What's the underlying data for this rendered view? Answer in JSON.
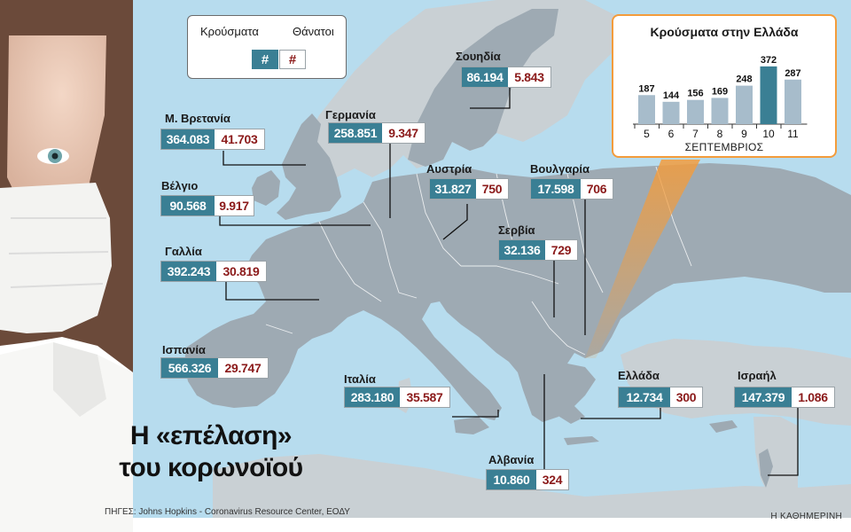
{
  "headline": {
    "line1": "Η «επέλαση»",
    "line2": "του κορωνοϊού"
  },
  "legend": {
    "cases_label": "Κρούσματα",
    "deaths_label": "Θάνατοι",
    "cases_symbol": "#",
    "deaths_symbol": "#"
  },
  "countries": [
    {
      "name": "Μ. Βρετανία",
      "cases": "364.083",
      "deaths": "41.703"
    },
    {
      "name": "Γερμανία",
      "cases": "258.851",
      "deaths": "9.347"
    },
    {
      "name": "Σουηδία",
      "cases": "86.194",
      "deaths": "5.843"
    },
    {
      "name": "Βέλγιο",
      "cases": "90.568",
      "deaths": "9.917"
    },
    {
      "name": "Αυστρία",
      "cases": "31.827",
      "deaths": "750"
    },
    {
      "name": "Βουλγαρία",
      "cases": "17.598",
      "deaths": "706"
    },
    {
      "name": "Γαλλία",
      "cases": "392.243",
      "deaths": "30.819"
    },
    {
      "name": "Σερβία",
      "cases": "32.136",
      "deaths": "729"
    },
    {
      "name": "Ισπανία",
      "cases": "566.326",
      "deaths": "29.747"
    },
    {
      "name": "Ιταλία",
      "cases": "283.180",
      "deaths": "35.587"
    },
    {
      "name": "Ελλάδα",
      "cases": "12.734",
      "deaths": "300"
    },
    {
      "name": "Ισραήλ",
      "cases": "147.379",
      "deaths": "1.086"
    },
    {
      "name": "Αλβανία",
      "cases": "10.860",
      "deaths": "324"
    }
  ],
  "chart_data": {
    "type": "bar",
    "title": "Κρούσματα στην Ελλάδα",
    "xlabel": "ΣΕΠΤΕΜΒΡΙΟΣ",
    "categories": [
      "5",
      "6",
      "7",
      "8",
      "9",
      "10",
      "11"
    ],
    "values": [
      187,
      144,
      156,
      169,
      248,
      372,
      287
    ],
    "highlight_index": 5,
    "ylim": [
      0,
      400
    ],
    "colors": {
      "bar": "#a7bccb",
      "highlight": "#3a7f94"
    }
  },
  "source": "ΠΗΓΕΣ: Johns Hopkins - Coronavirus Resource Center, ΕΟΔΥ",
  "brand": "Η ΚΑΘΗΜΕΡΙΝΗ",
  "colors": {
    "sea": "#b7dcee",
    "land": "#9eaab3",
    "outside_land": "#c9d0d4",
    "cases_bg": "#3a7f94",
    "deaths_text": "#8b1a1a",
    "accent_orange": "#f39c3c"
  }
}
